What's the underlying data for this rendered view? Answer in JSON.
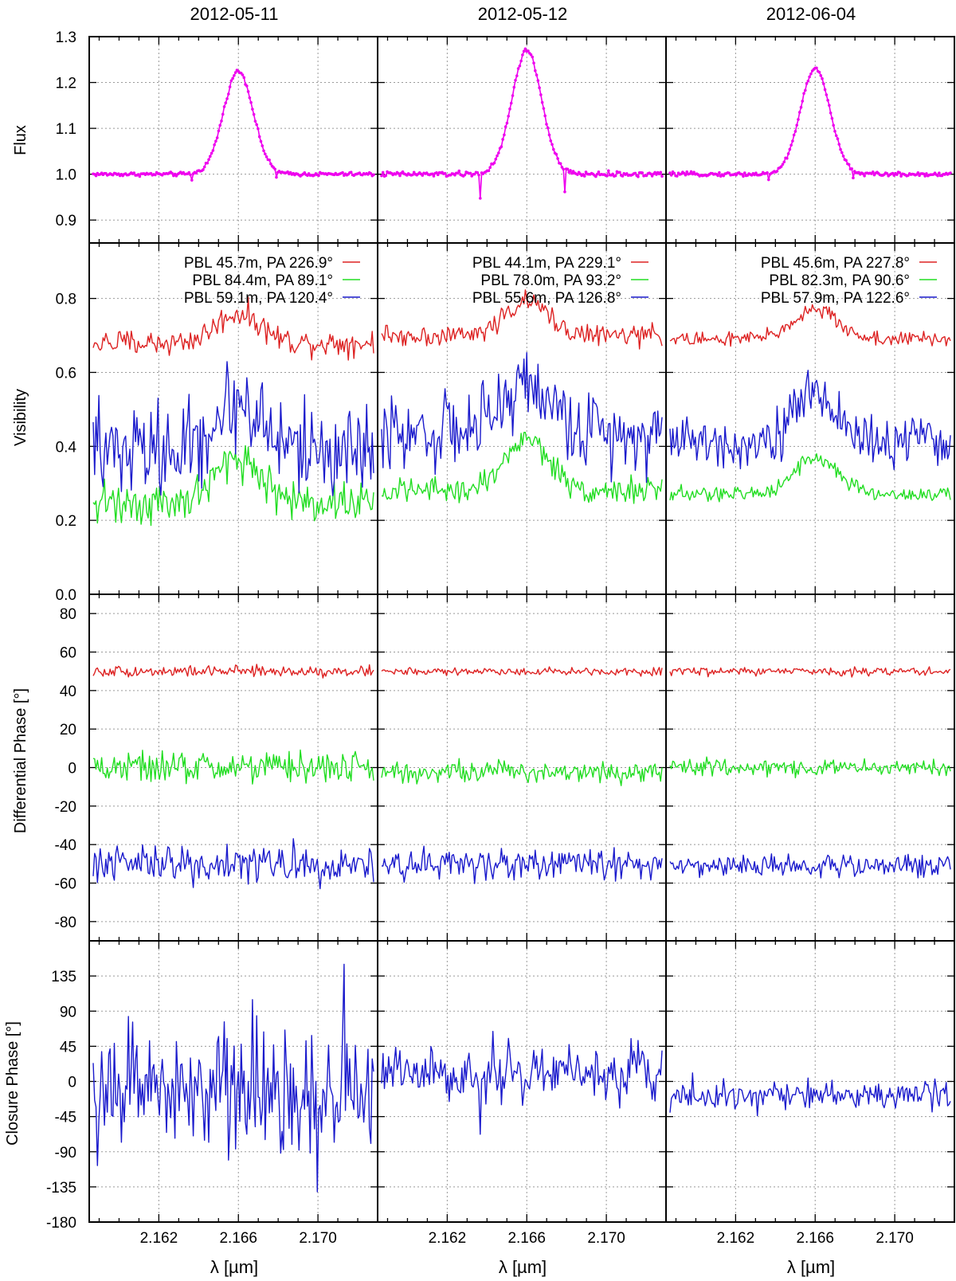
{
  "colors": {
    "flux": "#ee00ee",
    "b1": "#dd2222",
    "b2": "#22dd22",
    "b3": "#1a1acc",
    "grid": "#999999"
  },
  "x_ticks": [
    "2.162",
    "2.166",
    "2.170"
  ],
  "x_label": "λ [µm]",
  "row_labels": {
    "flux": "Flux",
    "vis": "Visibility",
    "dphi": "Differential Phase [°]",
    "cphi": "Closure Phase [°]"
  },
  "y_ticks": {
    "flux": [
      "1.3",
      "1.2",
      "1.1",
      "1.0",
      "0.9"
    ],
    "vis": [
      "0.8",
      "0.6",
      "0.4",
      "0.2",
      "0.0"
    ],
    "dphi": [
      "80",
      "60",
      "40",
      "20",
      "0",
      "-20",
      "-40",
      "-60",
      "-80"
    ],
    "cphi": [
      "135",
      "90",
      "45",
      "0",
      "-45",
      "-90",
      "-135",
      "-180"
    ]
  },
  "columns": [
    {
      "date": "2012-05-11",
      "legend": [
        "PBL 45.7m, PA 226.9°",
        "PBL 84.4m, PA   89.1°",
        "PBL 59.1m, PA 120.4°"
      ]
    },
    {
      "date": "2012-05-12",
      "legend": [
        "PBL 44.1m, PA 229.1°",
        "PBL 78.0m, PA   93.2°",
        "PBL 55.6m, PA 126.8°"
      ]
    },
    {
      "date": "2012-06-04",
      "legend": [
        "PBL 45.6m, PA 227.8°",
        "PBL 82.3m, PA   90.6°",
        "PBL 57.9m, PA 122.6°"
      ]
    }
  ],
  "chart_data": {
    "type": "line",
    "x_range_um": [
      2.1585,
      2.173
    ],
    "x_ticks": [
      2.162,
      2.166,
      2.17
    ],
    "panels": {
      "flux": {
        "ylim": [
          0.85,
          1.3
        ],
        "ylabel": "Flux"
      },
      "vis": {
        "ylim": [
          0.0,
          0.95
        ],
        "ylabel": "Visibility"
      },
      "dphi": {
        "ylim": [
          -90,
          90
        ],
        "ylabel": "Differential Phase [°]"
      },
      "cphi": {
        "ylim": [
          -180,
          180
        ],
        "ylabel": "Closure Phase [°]"
      }
    },
    "columns": [
      {
        "date": "2012-05-11",
        "flux": {
          "continuum": 1.0,
          "peak": 1.225,
          "peak_x": 2.166,
          "noise": 0.003
        },
        "visibility": [
          {
            "name": "PBL 45.7m, PA 226.9°",
            "continuum": 0.68,
            "peak": 0.76,
            "noise": 0.025
          },
          {
            "name": "PBL 84.4m, PA   89.1°",
            "continuum": 0.25,
            "peak": 0.37,
            "noise": 0.04
          },
          {
            "name": "PBL 59.1m, PA 120.4°",
            "continuum": 0.39,
            "peak": 0.52,
            "noise": 0.09
          }
        ],
        "differential_phase": [
          {
            "name": "PBL 45.7m, PA 226.9°",
            "mean": 50,
            "noise": 2
          },
          {
            "name": "PBL 84.4m, PA   89.1°",
            "mean": 0,
            "noise": 6
          },
          {
            "name": "PBL 59.1m, PA 120.4°",
            "mean": -50,
            "noise": 7
          }
        ],
        "closure_phase": {
          "mean": -15,
          "noise": 55
        }
      },
      {
        "date": "2012-05-12",
        "flux": {
          "continuum": 1.0,
          "peak": 1.27,
          "peak_x": 2.166,
          "noise": 0.004
        },
        "visibility": [
          {
            "name": "PBL 44.1m, PA 229.1°",
            "continuum": 0.7,
            "peak": 0.79,
            "noise": 0.02
          },
          {
            "name": "PBL 78.0m, PA   93.2°",
            "continuum": 0.28,
            "peak": 0.42,
            "noise": 0.025
          },
          {
            "name": "PBL 55.6m, PA 126.8°",
            "continuum": 0.44,
            "peak": 0.57,
            "noise": 0.07
          }
        ],
        "differential_phase": [
          {
            "name": "PBL 44.1m, PA 229.1°",
            "mean": 50,
            "noise": 1.5
          },
          {
            "name": "PBL 78.0m, PA   93.2°",
            "mean": -2,
            "noise": 4
          },
          {
            "name": "PBL 55.6m, PA 126.8°",
            "mean": -50,
            "noise": 6
          }
        ],
        "closure_phase": {
          "mean": 10,
          "noise": 22
        }
      },
      {
        "date": "2012-06-04",
        "flux": {
          "continuum": 1.0,
          "peak": 1.23,
          "peak_x": 2.166,
          "noise": 0.003
        },
        "visibility": [
          {
            "name": "PBL 45.6m, PA 227.8°",
            "continuum": 0.69,
            "peak": 0.77,
            "noise": 0.015
          },
          {
            "name": "PBL 82.3m, PA   90.6°",
            "continuum": 0.27,
            "peak": 0.37,
            "noise": 0.015
          },
          {
            "name": "PBL 57.9m, PA 122.6°",
            "continuum": 0.41,
            "peak": 0.54,
            "noise": 0.05
          }
        ],
        "differential_phase": [
          {
            "name": "PBL 45.6m, PA 227.8°",
            "mean": 50,
            "noise": 1.5
          },
          {
            "name": "PBL 82.3m, PA   90.6°",
            "mean": 0,
            "noise": 3
          },
          {
            "name": "PBL 57.9m, PA 122.6°",
            "mean": -51,
            "noise": 4
          }
        ],
        "closure_phase": {
          "mean": -18,
          "noise": 12
        }
      }
    ]
  }
}
